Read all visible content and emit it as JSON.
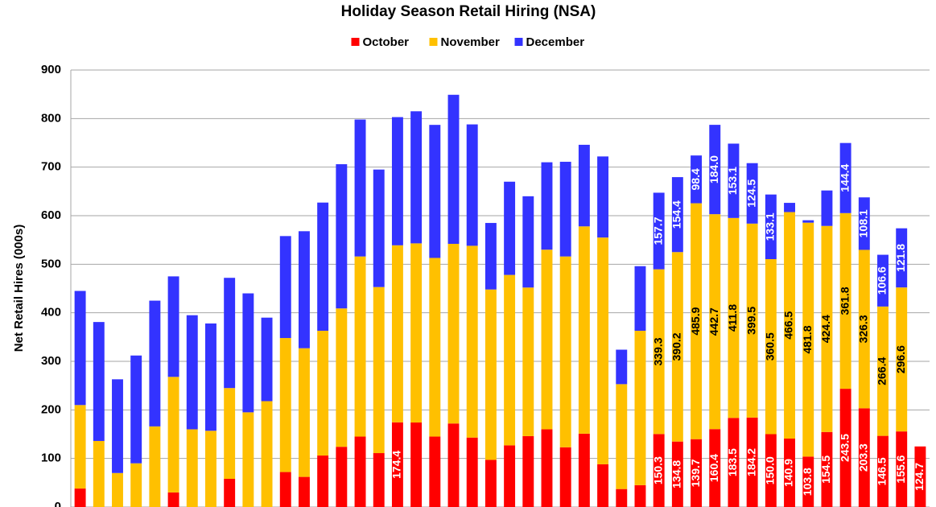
{
  "chart_data": {
    "type": "stacked_bar",
    "title": "Holiday Season Retail Hiring (NSA)",
    "y_label": "Net Retail Hires (000s)",
    "categories": [
      null,
      null,
      null,
      null,
      null,
      null,
      null,
      null,
      null,
      null,
      null,
      null,
      null,
      null,
      null,
      null,
      null,
      null,
      null,
      null,
      null,
      null,
      null,
      null,
      null,
      null,
      null,
      null,
      null,
      null,
      null,
      null,
      null,
      null,
      null,
      null,
      null,
      null,
      null,
      null,
      null,
      null,
      null,
      null,
      null,
      null
    ],
    "series": [
      {
        "name": "October",
        "color": "#ff0000",
        "values": [
          38,
          0,
          0,
          0,
          0,
          30,
          0,
          0,
          58,
          0,
          0,
          72,
          62,
          106,
          124,
          145,
          111,
          174.4,
          174,
          145,
          172,
          143,
          97,
          127,
          146,
          160,
          123,
          151,
          88,
          37,
          45,
          150.3,
          134.8,
          139.7,
          160.4,
          183.5,
          184.2,
          150.0,
          140.9,
          103.8,
          154.5,
          243.5,
          203.3,
          146.5,
          155.6,
          124.7
        ],
        "value_labels": [
          null,
          null,
          null,
          null,
          null,
          null,
          null,
          null,
          null,
          null,
          null,
          null,
          null,
          null,
          null,
          null,
          null,
          "174.4",
          null,
          null,
          null,
          null,
          null,
          null,
          null,
          null,
          null,
          null,
          null,
          null,
          null,
          "150.3",
          "134.8",
          "139.7",
          "160.4",
          "183.5",
          "184.2",
          "150.0",
          "140.9",
          "103.8",
          "154.5",
          "243.5",
          "203.3",
          "146.5",
          "155.6",
          "124.7"
        ]
      },
      {
        "name": "November",
        "color": "#ffc000",
        "values": [
          172,
          136,
          70,
          90,
          166,
          238,
          160,
          157,
          187,
          195,
          218,
          276,
          265,
          257,
          285,
          371,
          342,
          364.6,
          369,
          368,
          370,
          395,
          351,
          351,
          306,
          370,
          393,
          427,
          467,
          216,
          318,
          339.3,
          390.2,
          485.9,
          442.7,
          411.8,
          399.5,
          360.5,
          466.5,
          481.8,
          424.4,
          361.8,
          326.3,
          266.4,
          296.6,
          null
        ],
        "value_labels": [
          null,
          null,
          null,
          null,
          null,
          null,
          null,
          null,
          null,
          null,
          null,
          null,
          null,
          null,
          null,
          null,
          null,
          null,
          null,
          null,
          null,
          null,
          null,
          null,
          null,
          null,
          null,
          null,
          null,
          null,
          null,
          "339.3",
          "390.2",
          "485.9",
          "442.7",
          "411.8",
          "399.5",
          "360.5",
          "466.5",
          "481.8",
          "424.4",
          "361.8",
          "326.3",
          "266.4",
          "296.6",
          null
        ]
      },
      {
        "name": "December",
        "color": "#3333ff",
        "values": [
          235,
          245,
          193,
          222,
          259,
          207,
          235,
          221,
          227,
          245,
          172,
          210,
          241,
          264,
          297,
          282,
          242,
          264,
          272,
          274,
          307,
          250,
          137,
          192,
          188,
          180,
          195,
          168,
          167,
          71,
          133,
          157.7,
          154.4,
          98.4,
          184.0,
          153.1,
          124.5,
          133.1,
          19,
          5,
          73,
          144.4,
          108.1,
          106.6,
          121.8,
          null
        ],
        "value_labels": [
          null,
          null,
          null,
          null,
          null,
          null,
          null,
          null,
          null,
          null,
          null,
          null,
          null,
          null,
          null,
          null,
          null,
          null,
          null,
          null,
          null,
          null,
          null,
          null,
          null,
          null,
          null,
          null,
          null,
          null,
          null,
          "157.7",
          "154.4",
          "98.4",
          "184.0",
          "153.1",
          "124.5",
          "133.1",
          null,
          null,
          null,
          "144.4",
          "108.1",
          "106.6",
          "121.8",
          null
        ]
      }
    ],
    "ylim": [
      0,
      900
    ],
    "yticks": [
      0,
      100,
      200,
      300,
      400,
      500,
      600,
      700,
      800,
      900
    ],
    "grid": true,
    "legend": "top"
  }
}
